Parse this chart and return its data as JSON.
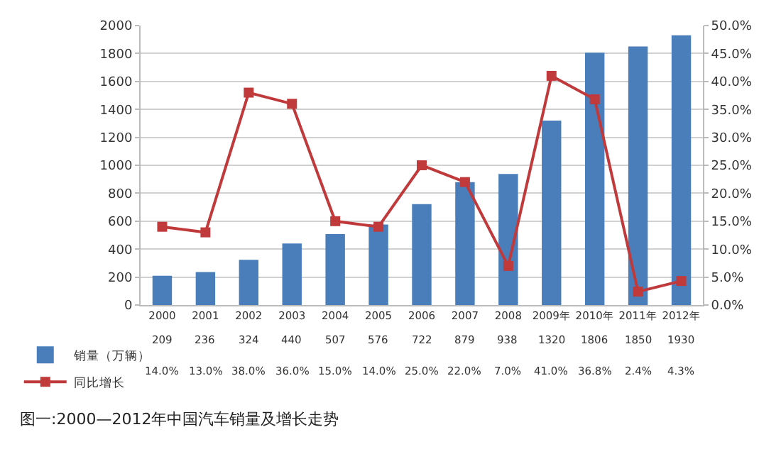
{
  "chart_data": {
    "type": "bar",
    "categories": [
      "2000",
      "2001",
      "2002",
      "2003",
      "2004",
      "2005",
      "2006",
      "2007",
      "2008",
      "2009年",
      "2010年",
      "2011年",
      "2012年"
    ],
    "series": [
      {
        "name": "销量（万辆）",
        "color": "#4a7ebb",
        "values": [
          209,
          236,
          324,
          440,
          507,
          576,
          722,
          879,
          938,
          1320,
          1806,
          1850,
          1930
        ],
        "value_labels": [
          "209",
          "236",
          "324",
          "440",
          "507",
          "576",
          "722",
          "879",
          "938",
          "1320",
          "1806",
          "1850",
          "1930"
        ]
      },
      {
        "name": "同比增长",
        "type": "line",
        "axis": "y2",
        "color": "#c0393b",
        "marker": "square",
        "line_style": "solid",
        "values": [
          14.0,
          13.0,
          38.0,
          36.0,
          15.0,
          14.0,
          25.0,
          22.0,
          7.0,
          41.0,
          36.8,
          2.4,
          4.3
        ],
        "value_labels": [
          "14.0%",
          "13.0%",
          "38.0%",
          "36.0%",
          "15.0%",
          "14.0%",
          "25.0%",
          "22.0%",
          "7.0%",
          "41.0%",
          "36.8%",
          "2.4%",
          "4.3%"
        ]
      }
    ],
    "ylim": [
      0,
      2000
    ],
    "yticks": [
      0,
      200,
      400,
      600,
      800,
      1000,
      1200,
      1400,
      1600,
      1800,
      2000
    ],
    "y2lim": [
      0,
      50
    ],
    "y2ticks": [
      {
        "value": 0,
        "label": "0.0%"
      },
      {
        "value": 5,
        "label": "5.0%"
      },
      {
        "value": 10,
        "label": "10.0%"
      },
      {
        "value": 15,
        "label": "15.0%"
      },
      {
        "value": 20,
        "label": "20.0%"
      },
      {
        "value": 25,
        "label": "25.0%"
      },
      {
        "value": 30,
        "label": "30.0%"
      },
      {
        "value": 35,
        "label": "35.0%"
      },
      {
        "value": 40,
        "label": "40.0%"
      },
      {
        "value": 45,
        "label": "45.0%"
      },
      {
        "value": 50,
        "label": "50.0%"
      }
    ],
    "grid": "y",
    "legend": "bottom left",
    "annotations": [
      "图一:2000—2012年中国汽车销量及增长走势"
    ]
  }
}
